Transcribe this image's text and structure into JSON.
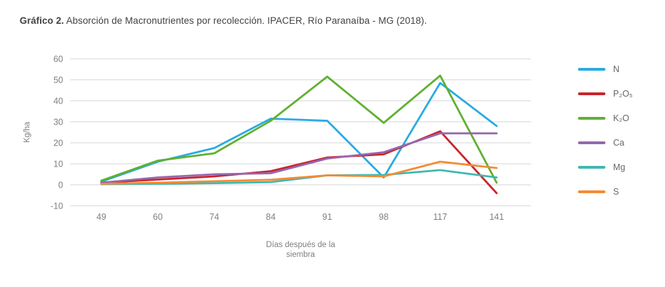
{
  "title": {
    "prefix": "Gráfico 2.",
    "text": " Absorción de Macronutrientes por recolección. IPACER, Río Paranaíba - MG (2018)."
  },
  "chart_data": {
    "type": "line",
    "categories": [
      "49",
      "60",
      "74",
      "84",
      "91",
      "98",
      "117",
      "141"
    ],
    "xlabel_lines": [
      "Días después de la",
      "siembra"
    ],
    "ylabel": "Kg/ha",
    "ylim": [
      -10,
      60
    ],
    "yticks": [
      60,
      50,
      40,
      30,
      20,
      10,
      0,
      -10
    ],
    "grid": true,
    "legend_position": "right",
    "series": [
      {
        "id": "N",
        "name": "N",
        "color": "#29ABE2",
        "values": [
          1.5,
          11,
          17.5,
          31.5,
          30.5,
          3.5,
          48.5,
          28
        ]
      },
      {
        "id": "P2O5",
        "name": "P₂O₅",
        "color": "#C9242B",
        "values": [
          1,
          2.5,
          4,
          6.5,
          13,
          14.5,
          25.5,
          -4
        ]
      },
      {
        "id": "K2O",
        "name": "K₂O",
        "color": "#60B030",
        "values": [
          2,
          11.5,
          15,
          30.5,
          51.5,
          29.5,
          52,
          1
        ]
      },
      {
        "id": "Ca",
        "name": "Ca",
        "color": "#9667AE",
        "values": [
          1,
          3.5,
          5,
          5.5,
          12.5,
          15.5,
          24.5,
          24.5
        ]
      },
      {
        "id": "Mg",
        "name": "Mg",
        "color": "#40B7B0",
        "values": [
          0.3,
          0.5,
          0.8,
          1.3,
          4.5,
          4.7,
          7,
          3.5
        ]
      },
      {
        "id": "S",
        "name": "S",
        "color": "#F58B33",
        "values": [
          0.5,
          1,
          1.7,
          2.4,
          4.5,
          4,
          11,
          8
        ]
      }
    ]
  }
}
